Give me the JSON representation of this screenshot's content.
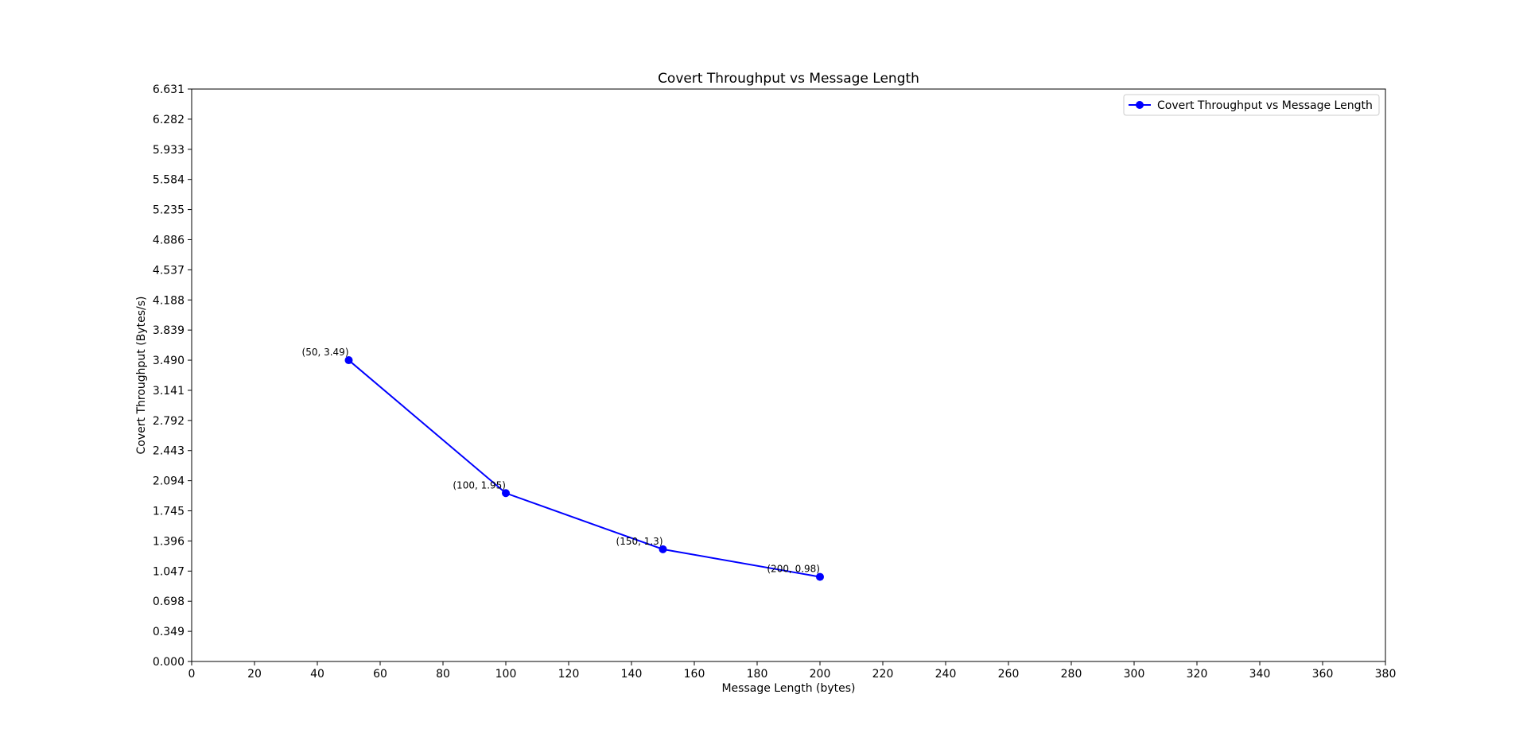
{
  "chart_data": {
    "type": "line",
    "title": "Covert Throughput vs Message Length",
    "xlabel": "Message Length (bytes)",
    "ylabel": "Covert Throughput (Bytes/s)",
    "xlim": [
      0,
      380
    ],
    "ylim": [
      0.0,
      6.631
    ],
    "x_ticks": [
      "0",
      "20",
      "40",
      "60",
      "80",
      "100",
      "120",
      "140",
      "160",
      "180",
      "200",
      "220",
      "240",
      "260",
      "280",
      "300",
      "320",
      "340",
      "360",
      "380"
    ],
    "x_tick_values": [
      0,
      20,
      40,
      60,
      80,
      100,
      120,
      140,
      160,
      180,
      200,
      220,
      240,
      260,
      280,
      300,
      320,
      340,
      360,
      380
    ],
    "y_ticks": [
      "0.000",
      "0.349",
      "0.698",
      "1.047",
      "1.396",
      "1.745",
      "2.094",
      "2.443",
      "2.792",
      "3.141",
      "3.490",
      "3.839",
      "4.188",
      "4.537",
      "4.886",
      "5.235",
      "5.584",
      "5.933",
      "6.282",
      "6.631"
    ],
    "y_tick_values": [
      0.0,
      0.349,
      0.698,
      1.047,
      1.396,
      1.745,
      2.094,
      2.443,
      2.792,
      3.141,
      3.49,
      3.839,
      4.188,
      4.537,
      4.886,
      5.235,
      5.584,
      5.933,
      6.282,
      6.631
    ],
    "grid": false,
    "legend_position": "top-right",
    "series": [
      {
        "name": "Covert Throughput vs Message Length",
        "color": "#0000ff",
        "marker": "circle",
        "x": [
          50,
          100,
          150,
          200
        ],
        "y": [
          3.49,
          1.95,
          1.3,
          0.98
        ],
        "point_labels": [
          "(50, 3.49)",
          "(100, 1.95)",
          "(150, 1.3)",
          "(200, 0.98)"
        ]
      }
    ]
  }
}
